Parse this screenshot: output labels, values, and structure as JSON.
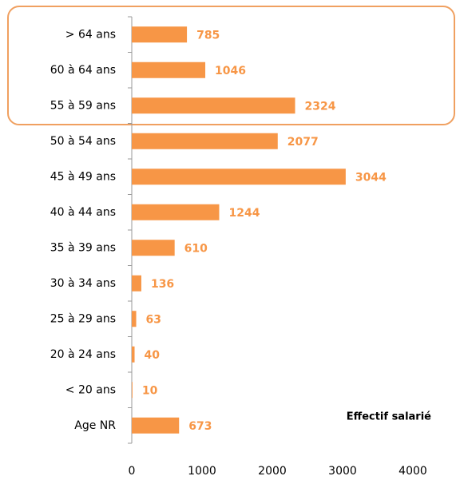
{
  "chart_data": {
    "type": "bar",
    "orientation": "horizontal",
    "categories": [
      "> 64 ans",
      "60 à 64 ans",
      "55 à 59 ans",
      "50 à 54 ans",
      "45 à 49 ans",
      "40 à 44 ans",
      "35 à 39 ans",
      "30 à 34 ans",
      "25 à 29 ans",
      "20 à 24 ans",
      "< 20 ans",
      "Age NR"
    ],
    "values": [
      785,
      1046,
      2324,
      2077,
      3044,
      1244,
      610,
      136,
      63,
      40,
      10,
      673
    ],
    "color": "#f79646",
    "xlim": [
      0,
      4000
    ],
    "xticks": [
      0,
      1000,
      2000,
      3000,
      4000
    ],
    "annotation": "Effectif salarié"
  }
}
